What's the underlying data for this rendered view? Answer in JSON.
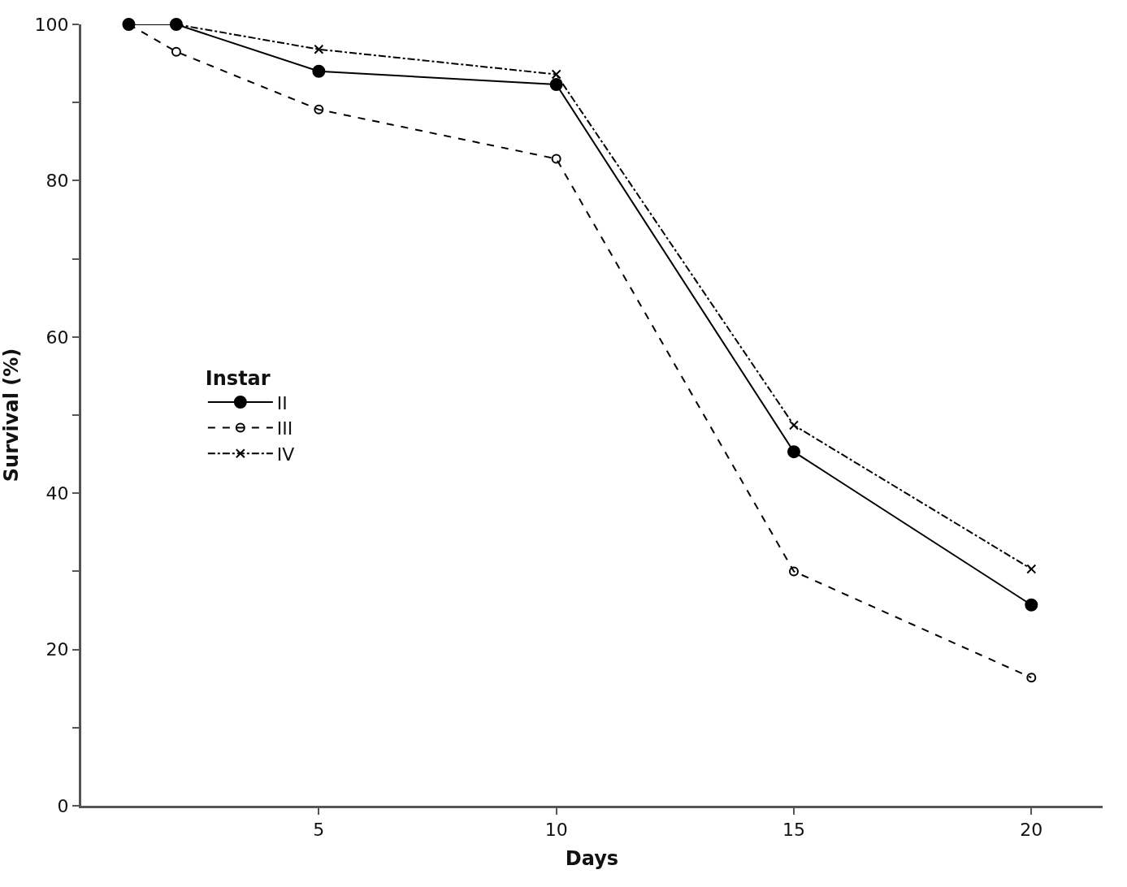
{
  "chart_data": {
    "type": "line",
    "xlabel": "Days",
    "ylabel": "Survival (%)",
    "legend_title": "Instar",
    "legend": "left",
    "xlim": [
      0,
      21.5
    ],
    "xticks": [
      5,
      10,
      15,
      20
    ],
    "ylim": [
      0,
      100
    ],
    "yticks": [
      0,
      {
        "value": 10,
        "label": null
      },
      20,
      {
        "value": 30,
        "label": null
      },
      40,
      {
        "value": 50,
        "label": null
      },
      60,
      {
        "value": 70,
        "label": null
      },
      80,
      {
        "value": 90,
        "label": null
      },
      100
    ],
    "series": [
      {
        "name": "II",
        "color": "#000000",
        "marker": "circle",
        "line_style": "solid",
        "x": [
          1,
          2,
          5,
          10,
          15,
          20
        ],
        "values": [
          100,
          100,
          94,
          92.3,
          45.3,
          25.7
        ]
      },
      {
        "name": "III",
        "color": "#000000",
        "marker": "circle-open",
        "line_style": "dashed",
        "x": [
          1,
          2,
          5,
          10,
          15,
          20
        ],
        "values": [
          100,
          96.5,
          89.1,
          82.8,
          30,
          16.4
        ]
      },
      {
        "name": "IV",
        "color": "#000000",
        "marker": "cross",
        "line_style": "dashdot",
        "x": [
          2,
          5,
          10,
          15,
          20
        ],
        "values": [
          100,
          96.8,
          93.6,
          48.7,
          30.3
        ]
      }
    ]
  }
}
